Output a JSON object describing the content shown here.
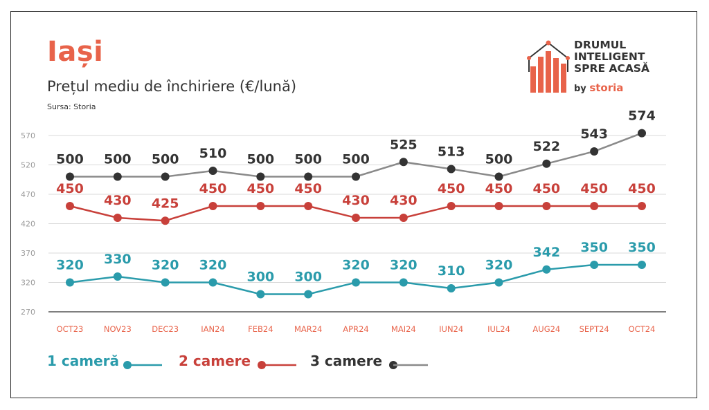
{
  "header": {
    "city": "Iași",
    "subtitle": "Prețul mediu de închiriere (€/lună)",
    "source": "Sursa: Storia"
  },
  "logo": {
    "line1": "DRUMUL",
    "line2": "INTELIGENT",
    "line3": "SPRE ACASĂ",
    "by": "by",
    "brand": "storia",
    "accent_color": "#e8634a"
  },
  "legend": {
    "items": [
      {
        "label": "1 cameră",
        "color": "#2a9bab"
      },
      {
        "label": "2 camere",
        "color": "#c8403a"
      },
      {
        "label": "3 camere",
        "color": "#333333"
      }
    ]
  },
  "chart_data": {
    "type": "line",
    "title": "Prețul mediu de închiriere (€/lună)",
    "categories": [
      "OCT23",
      "NOV23",
      "DEC23",
      "IAN24",
      "FEB24",
      "MAR24",
      "APR24",
      "MAI24",
      "IUN24",
      "IUL24",
      "AUG24",
      "SEPT24",
      "OCT24"
    ],
    "y_tick_labels": [
      "570",
      "520",
      "470",
      "420",
      "370",
      "320",
      "270"
    ],
    "grid": true,
    "series": [
      {
        "name": "3 camere",
        "color": "#333333",
        "line_color": "#8a8a8a",
        "label_color": "#333333",
        "values": [
          500,
          500,
          500,
          510,
          500,
          500,
          500,
          525,
          513,
          500,
          522,
          543,
          574
        ]
      },
      {
        "name": "2 camere",
        "color": "#c8403a",
        "line_color": "#c8403a",
        "label_color": "#c8403a",
        "values": [
          450,
          430,
          425,
          450,
          450,
          450,
          430,
          430,
          450,
          450,
          450,
          450,
          450
        ]
      },
      {
        "name": "1 cameră",
        "color": "#2a9bab",
        "line_color": "#2a9bab",
        "label_color": "#2a9bab",
        "values": [
          320,
          330,
          320,
          320,
          300,
          300,
          320,
          320,
          310,
          320,
          342,
          350,
          350
        ]
      }
    ]
  }
}
